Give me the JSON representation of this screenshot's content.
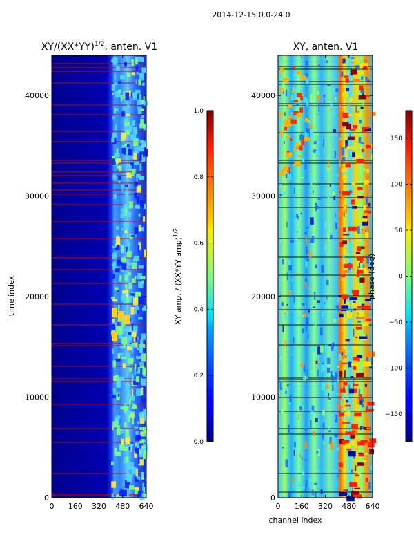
{
  "suptitle": "2014-12-15 0.0-24.0",
  "chart_data": [
    {
      "type": "heatmap",
      "title_base": "XY/(XX*YY)",
      "title_exp": "1/2",
      "title_suffix": ", anten. V1",
      "xlabel": "",
      "ylabel": "time index",
      "xlim": [
        0,
        640
      ],
      "ylim": [
        0,
        44000
      ],
      "xticks": [
        0,
        160,
        320,
        480,
        640
      ],
      "yticks": [
        0,
        10000,
        20000,
        30000,
        40000
      ],
      "colorbar": {
        "label_base": "XY amp. / (XX*YY amp)",
        "label_exp": "1/2",
        "range": [
          0.0,
          1.0
        ],
        "ticks": [
          0.0,
          0.2,
          0.4,
          0.6,
          0.8,
          1.0
        ],
        "tick_labels": [
          "0.0",
          "0.2",
          "0.4",
          "0.6",
          "0.8",
          "1.0"
        ]
      }
    },
    {
      "type": "heatmap",
      "title": "XY, anten. V1",
      "xlabel": "channel index",
      "ylabel": "",
      "xlim": [
        0,
        640
      ],
      "ylim": [
        0,
        44000
      ],
      "xticks": [
        0,
        160,
        320,
        480,
        640
      ],
      "yticks": [
        0,
        10000,
        20000,
        30000,
        40000
      ],
      "colorbar": {
        "label": "phase (deg)",
        "range": [
          -180,
          180
        ],
        "ticks": [
          -150,
          -100,
          -50,
          0,
          50,
          100,
          150
        ],
        "tick_labels": [
          "−150",
          "−100",
          "−50",
          "0",
          "50",
          "100",
          "150"
        ]
      }
    }
  ]
}
